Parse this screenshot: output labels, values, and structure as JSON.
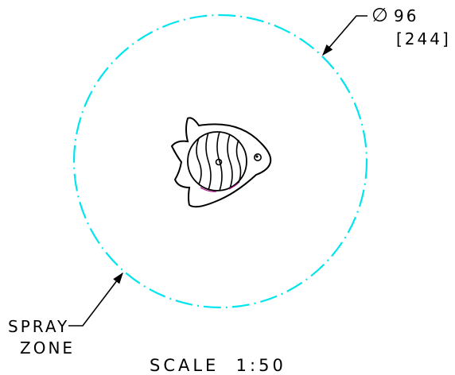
{
  "dimension": {
    "diameter_symbol": "∅",
    "value": "96",
    "alt_value": "[244]"
  },
  "callout": {
    "line1": "SPRAY",
    "line2": "ZONE"
  },
  "scale_label": "SCALE  1:50",
  "colors": {
    "spray_zone": "#00e5ee",
    "ink": "#000000",
    "accent": "#b0108a"
  }
}
